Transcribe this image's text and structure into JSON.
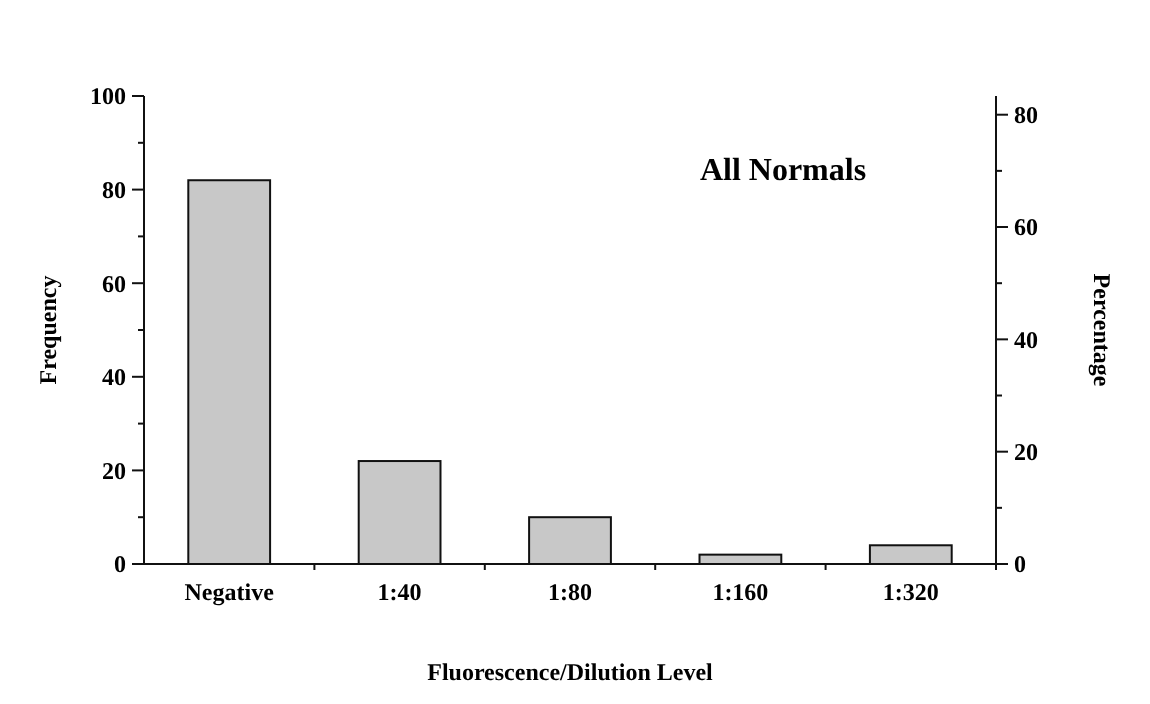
{
  "chart_data": {
    "type": "bar",
    "title": "All Normals",
    "xlabel": "Fluorescence/Dilution Level",
    "ylabel": "Frequency",
    "y2label": "Percentage",
    "categories": [
      "Negative",
      "1:40",
      "1:80",
      "1:160",
      "1:320"
    ],
    "values": [
      82,
      22,
      10,
      2,
      4
    ],
    "color": "#c8c8c8",
    "ylim": [
      0,
      100
    ],
    "yticks": [
      0,
      {
        "value": 10,
        "label": null
      },
      20,
      {
        "value": 30,
        "label": null
      },
      40,
      {
        "value": 50,
        "label": null
      },
      60,
      {
        "value": 70,
        "label": null
      },
      80,
      {
        "value": 90,
        "label": null
      },
      100
    ],
    "y2lim": [
      0,
      83.33
    ],
    "y2ticks": [
      0,
      {
        "value": 10,
        "label": null
      },
      20,
      {
        "value": 30,
        "label": null
      },
      40,
      {
        "value": 50,
        "label": null
      },
      60,
      {
        "value": 70,
        "label": null
      },
      80
    ],
    "grid": false
  }
}
